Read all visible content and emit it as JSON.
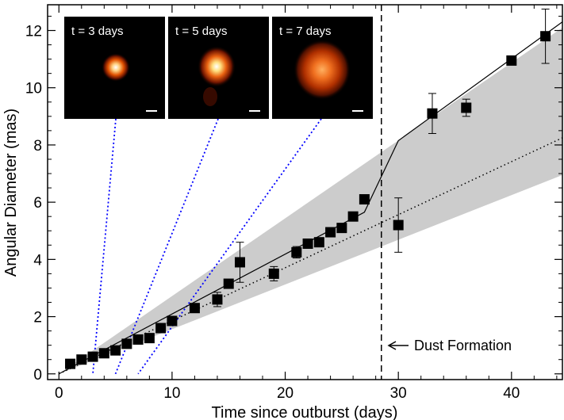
{
  "chart_data": {
    "type": "scatter",
    "title": "",
    "xlabel": "Time since outburst (days)",
    "ylabel": "Angular Diameter (mas)",
    "xlim": [
      -1,
      44.5
    ],
    "ylim": [
      -0.2,
      12.9
    ],
    "xticks": [
      0,
      10,
      20,
      30,
      40
    ],
    "yticks": [
      0,
      2,
      4,
      6,
      8,
      10,
      12
    ],
    "grid": false,
    "series": [
      {
        "name": "measurements",
        "x": [
          1,
          2,
          3,
          4,
          5,
          6,
          7,
          8,
          9,
          10,
          12,
          14,
          15,
          16,
          19,
          21,
          22,
          23,
          24,
          25,
          26,
          27,
          30,
          33,
          36,
          40,
          43
        ],
        "y": [
          0.35,
          0.5,
          0.6,
          0.72,
          0.82,
          1.05,
          1.2,
          1.25,
          1.6,
          1.85,
          2.3,
          2.6,
          3.15,
          3.9,
          3.5,
          4.25,
          4.55,
          4.6,
          4.95,
          5.1,
          5.5,
          6.1,
          5.2,
          9.1,
          9.3,
          10.95,
          11.8
        ],
        "err": [
          0,
          0,
          0,
          0,
          0,
          0,
          0,
          0,
          0,
          0,
          0,
          0.25,
          0,
          0.7,
          0.25,
          0.2,
          0,
          0,
          0,
          0,
          0,
          0,
          0.95,
          0.7,
          0.3,
          0,
          0.95
        ]
      }
    ],
    "fit_solid": {
      "x": [
        0,
        27,
        30,
        44.5
      ],
      "y": [
        0,
        5.65,
        8.15,
        12.3
      ]
    },
    "fit_dotted": {
      "x": [
        0,
        44.5
      ],
      "y": [
        0,
        8.25
      ]
    },
    "band": {
      "x": [
        0,
        44.5
      ],
      "upper": [
        0,
        12.1
      ],
      "lower": [
        0,
        6.95
      ]
    },
    "vline_x": 28.5,
    "annotation": {
      "text": "Dust Formation",
      "x": 29.5,
      "y": 1.0
    },
    "insets": [
      {
        "label": "t = 3 days",
        "day": 3
      },
      {
        "label": "t = 5 days",
        "day": 5
      },
      {
        "label": "t = 7 days",
        "day": 7
      }
    ],
    "colors": {
      "band": "#cccccc",
      "guide": "#0000ff",
      "marker": "#000000"
    }
  }
}
